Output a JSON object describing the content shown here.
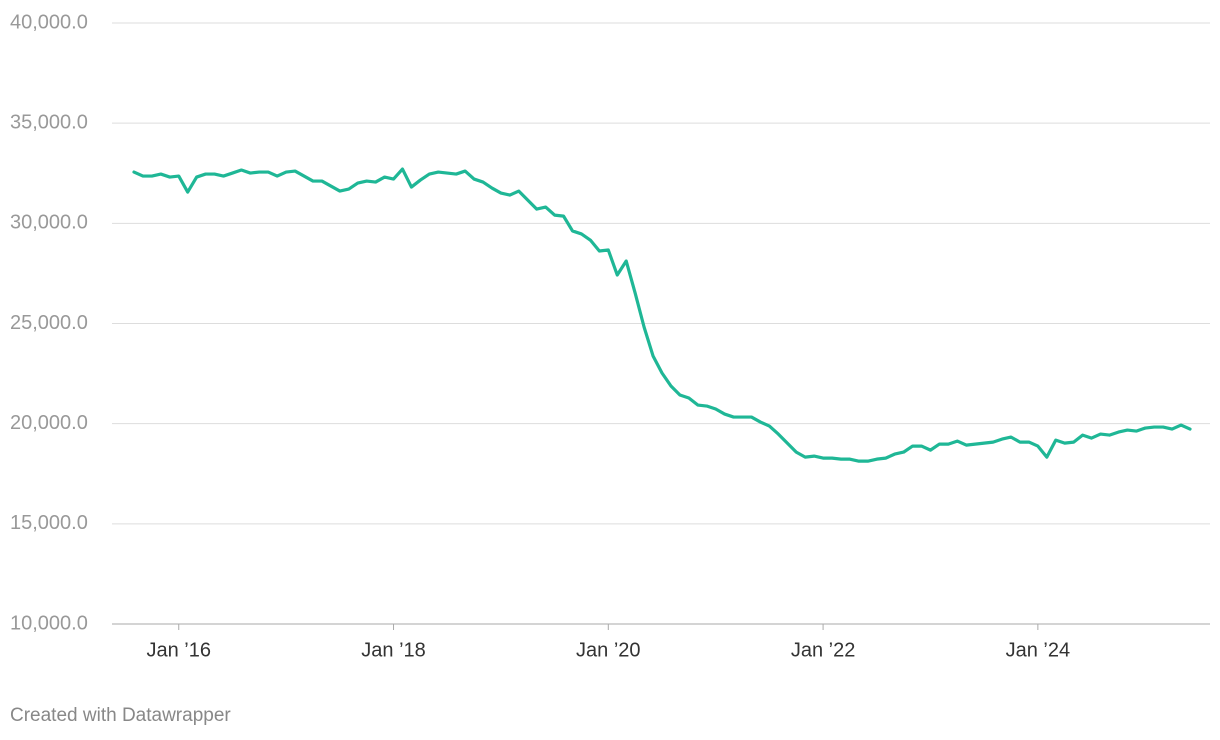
{
  "chart_data": {
    "type": "line",
    "x": [
      "2015-08",
      "2015-09",
      "2015-10",
      "2015-11",
      "2015-12",
      "2016-01",
      "2016-02",
      "2016-03",
      "2016-04",
      "2016-05",
      "2016-06",
      "2016-07",
      "2016-08",
      "2016-09",
      "2016-10",
      "2016-11",
      "2016-12",
      "2017-01",
      "2017-02",
      "2017-03",
      "2017-04",
      "2017-05",
      "2017-06",
      "2017-07",
      "2017-08",
      "2017-09",
      "2017-10",
      "2017-11",
      "2017-12",
      "2018-01",
      "2018-02",
      "2018-03",
      "2018-04",
      "2018-05",
      "2018-06",
      "2018-07",
      "2018-08",
      "2018-09",
      "2018-10",
      "2018-11",
      "2018-12",
      "2019-01",
      "2019-02",
      "2019-03",
      "2019-04",
      "2019-05",
      "2019-06",
      "2019-07",
      "2019-08",
      "2019-09",
      "2019-10",
      "2019-11",
      "2019-12",
      "2020-01",
      "2020-02",
      "2020-03",
      "2020-04",
      "2020-05",
      "2020-06",
      "2020-07",
      "2020-08",
      "2020-09",
      "2020-10",
      "2020-11",
      "2020-12",
      "2021-01",
      "2021-02",
      "2021-03",
      "2021-04",
      "2021-05",
      "2021-06",
      "2021-07",
      "2021-08",
      "2021-09",
      "2021-10",
      "2021-11",
      "2021-12",
      "2022-01",
      "2022-02",
      "2022-03",
      "2022-04",
      "2022-05",
      "2022-06",
      "2022-07",
      "2022-08",
      "2022-09",
      "2022-10",
      "2022-11",
      "2022-12",
      "2023-01",
      "2023-02",
      "2023-03",
      "2023-04",
      "2023-05",
      "2023-06",
      "2023-07",
      "2023-08",
      "2023-09",
      "2023-10",
      "2023-11",
      "2023-12",
      "2024-01",
      "2024-02",
      "2024-03",
      "2024-04",
      "2024-05",
      "2024-06",
      "2024-07",
      "2024-08",
      "2024-09",
      "2024-10",
      "2024-11",
      "2024-12",
      "2025-01",
      "2025-02",
      "2025-03",
      "2025-04",
      "2025-05",
      "2025-06"
    ],
    "values": [
      32560,
      32360,
      32360,
      32460,
      32310,
      32360,
      31560,
      32310,
      32460,
      32460,
      32360,
      32510,
      32660,
      32510,
      32560,
      32560,
      32360,
      32560,
      32610,
      32360,
      32110,
      32110,
      31860,
      31610,
      31710,
      32010,
      32110,
      32060,
      32310,
      32210,
      32710,
      31810,
      32160,
      32460,
      32560,
      32510,
      32460,
      32610,
      32210,
      32060,
      31760,
      31510,
      31410,
      31610,
      31160,
      30710,
      30810,
      30410,
      30360,
      29620,
      29470,
      29160,
      28620,
      28670,
      27420,
      28120,
      26520,
      24820,
      23380,
      22530,
      21880,
      21430,
      21280,
      20930,
      20880,
      20730,
      20480,
      20330,
      20330,
      20330,
      20080,
      19880,
      19480,
      19030,
      18580,
      18330,
      18380,
      18280,
      18280,
      18230,
      18230,
      18130,
      18130,
      18230,
      18280,
      18480,
      18580,
      18880,
      18880,
      18680,
      18980,
      18980,
      19130,
      18930,
      18980,
      19030,
      19080,
      19230,
      19330,
      19080,
      19080,
      18880,
      18330,
      19180,
      19030,
      19080,
      19430,
      19280,
      19480,
      19430,
      19580,
      19680,
      19630,
      19780,
      19830,
      19830,
      19730,
      19930,
      19730
    ],
    "color": "#1fb796",
    "ylim": [
      10000,
      40000
    ],
    "yticks": [
      {
        "value": 10000,
        "label": "10,000.0"
      },
      {
        "value": 15000,
        "label": "15,000.0"
      },
      {
        "value": 20000,
        "label": "20,000.0"
      },
      {
        "value": 25000,
        "label": "25,000.0"
      },
      {
        "value": 30000,
        "label": "30,000.0"
      },
      {
        "value": 35000,
        "label": "35,000.0"
      },
      {
        "value": 40000,
        "label": "40,000.0"
      }
    ],
    "xticks": [
      {
        "value": "2016-01",
        "label": "Jan ’16"
      },
      {
        "value": "2018-01",
        "label": "Jan ’18"
      },
      {
        "value": "2020-01",
        "label": "Jan ’20"
      },
      {
        "value": "2022-01",
        "label": "Jan ’22"
      },
      {
        "value": "2024-01",
        "label": "Jan ’24"
      }
    ],
    "grid": true,
    "source": "Created with Datawrapper"
  }
}
